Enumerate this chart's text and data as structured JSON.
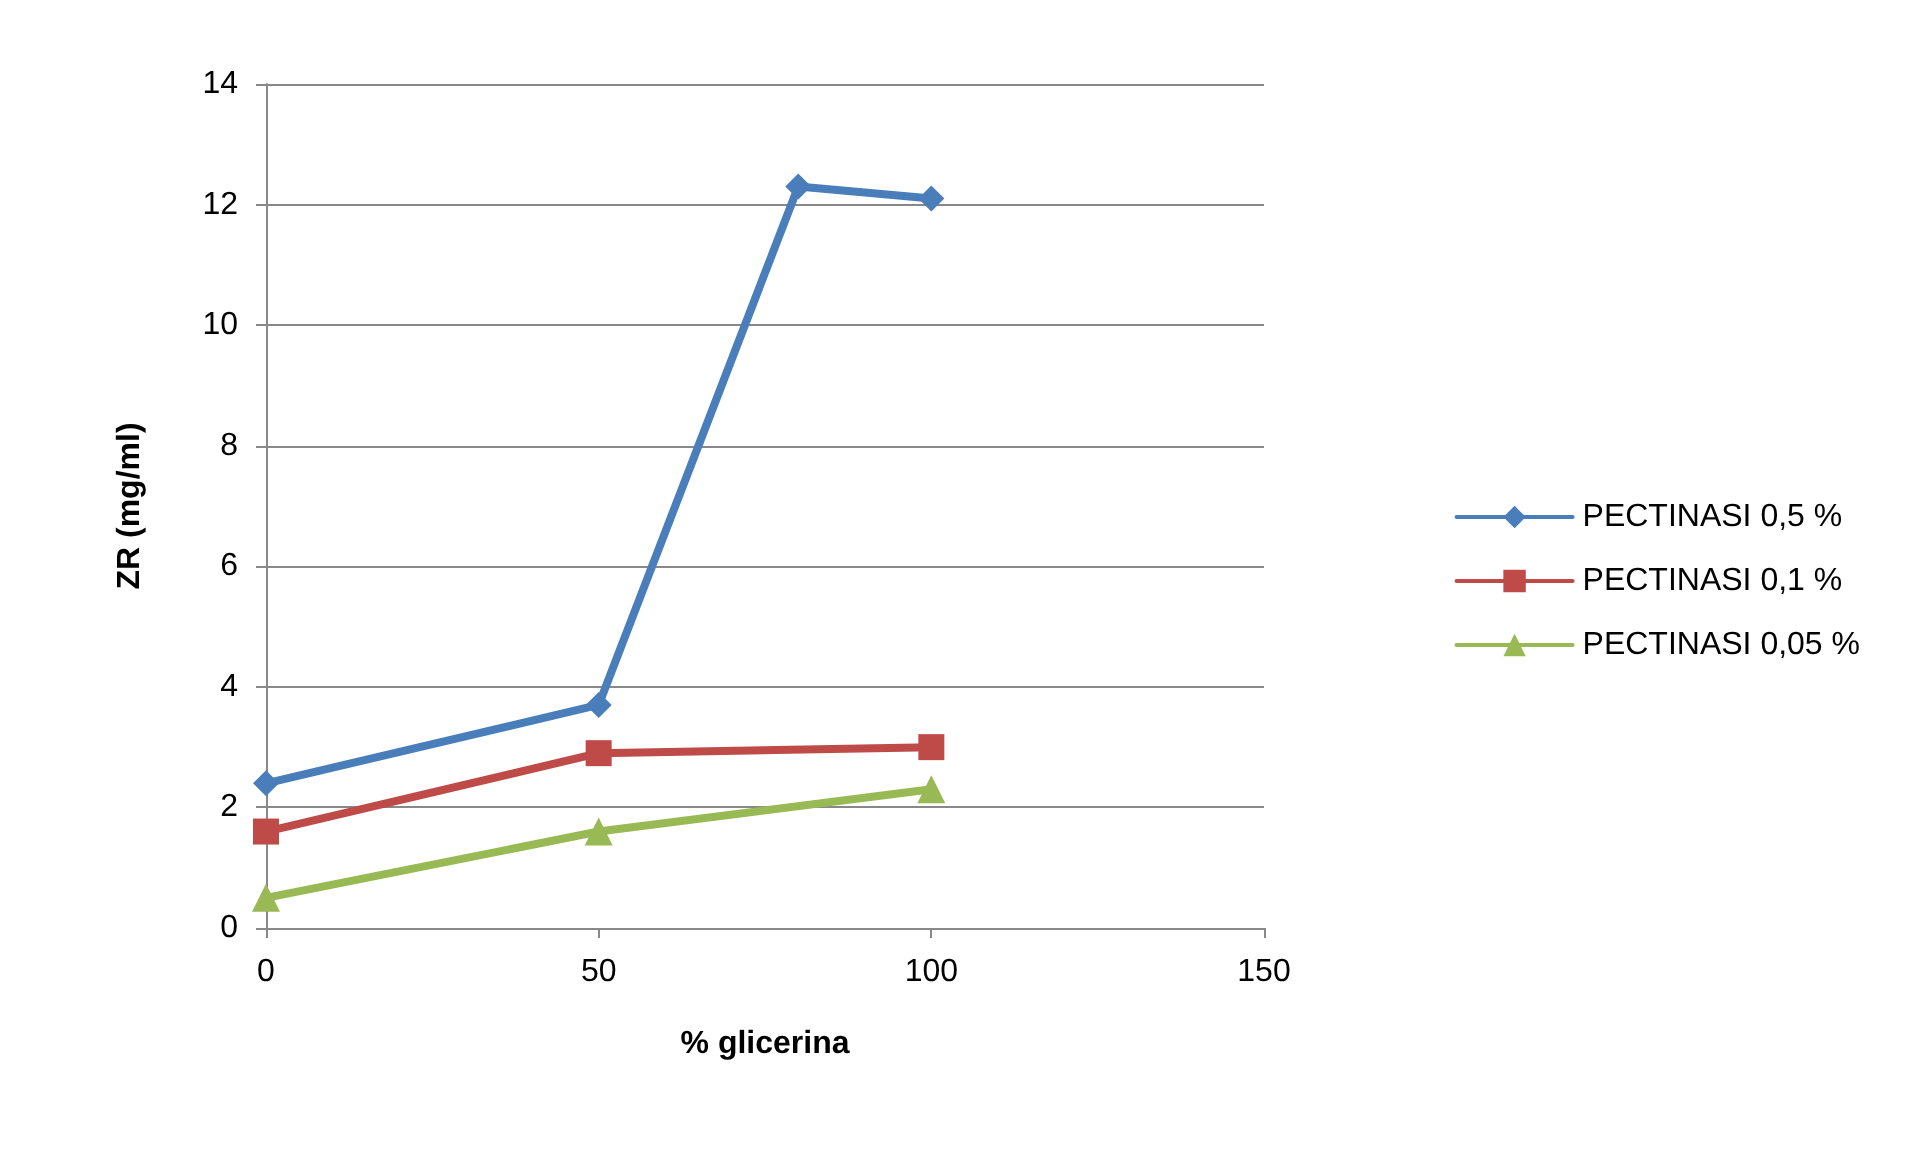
{
  "chart_data": {
    "type": "line",
    "xlabel": "% glicerina",
    "ylabel": "ZR (mg/ml)",
    "xlim": [
      0,
      150
    ],
    "xticks": [
      0,
      50,
      100,
      150
    ],
    "ylim": [
      0,
      14
    ],
    "yticks": [
      0,
      2,
      4,
      6,
      8,
      10,
      12,
      14
    ],
    "grid": "y",
    "legend": "right",
    "line_style": "solid",
    "series": [
      {
        "name": "PECTINASI 0,5 %",
        "color": "#4a7ebb",
        "marker": "diamond",
        "x": [
          0,
          50,
          80,
          100
        ],
        "values": [
          2.4,
          3.7,
          12.3,
          12.1
        ]
      },
      {
        "name": "PECTINASI 0,1 %",
        "color": "#be4b48",
        "marker": "square",
        "x": [
          0,
          50,
          100
        ],
        "values": [
          1.6,
          2.9,
          3.0
        ]
      },
      {
        "name": "PECTINASI 0,05 %",
        "color": "#98b954",
        "marker": "triangle",
        "x": [
          0,
          50,
          100
        ],
        "values": [
          0.5,
          1.6,
          2.3
        ]
      }
    ]
  }
}
